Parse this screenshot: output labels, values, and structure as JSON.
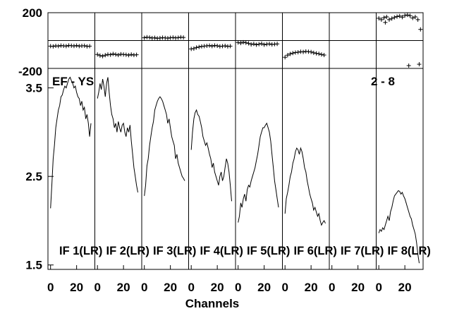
{
  "chart_data": {
    "type": "line",
    "xlabel": "Channels",
    "x_tick_labels": [
      "0",
      "20"
    ],
    "baseline_label": "EF - YS",
    "page_label": "2 - 8",
    "phase_panel": {
      "ylim": [
        -200,
        200
      ],
      "y_tick_labels": [
        "200",
        "-200"
      ]
    },
    "amp_panel": {
      "ylim": [
        1.45,
        3.72
      ],
      "y_tick_labels": [
        "3.5",
        "2.5",
        "1.5"
      ],
      "y_ticks": [
        3.5,
        2.5,
        1.5
      ]
    },
    "xlim": [
      -2,
      34
    ],
    "panels": [
      {
        "label": "IF 1(LR)",
        "amp_x": [
          0,
          1,
          2,
          3,
          4,
          5,
          6,
          7,
          8,
          9,
          10,
          11,
          12,
          13,
          14,
          15,
          16,
          17,
          18,
          19,
          20,
          21,
          22,
          23,
          24,
          25,
          26,
          27,
          28,
          29,
          30,
          31
        ],
        "amp_y": [
          2.14,
          2.4,
          2.7,
          2.85,
          3.05,
          3.15,
          3.25,
          3.3,
          3.4,
          3.42,
          3.48,
          3.52,
          3.5,
          3.55,
          3.6,
          3.62,
          3.58,
          3.55,
          3.5,
          3.52,
          3.45,
          3.4,
          3.38,
          3.3,
          3.35,
          3.25,
          3.28,
          3.15,
          3.2,
          3.1,
          2.95,
          3.1
        ],
        "phase_x": [
          0,
          2,
          4,
          6,
          8,
          10,
          12,
          14,
          16,
          18,
          20,
          22,
          24,
          26,
          28,
          30
        ],
        "phase_y": [
          -40,
          -42,
          -38,
          -40,
          -36,
          -38,
          -40,
          -35,
          -37,
          -39,
          -36,
          -40,
          -38,
          -37,
          -42,
          -40
        ]
      },
      {
        "label": "IF 2(LR)",
        "amp_x": [
          0,
          1,
          2,
          3,
          4,
          5,
          6,
          7,
          8,
          9,
          10,
          11,
          12,
          13,
          14,
          15,
          16,
          17,
          18,
          19,
          20,
          21,
          22,
          23,
          24,
          25,
          26,
          27,
          28,
          29,
          30,
          31
        ],
        "amp_y": [
          3.38,
          3.45,
          3.55,
          3.48,
          3.6,
          3.52,
          3.4,
          3.55,
          3.62,
          3.45,
          3.3,
          3.2,
          3.15,
          3.05,
          3.1,
          3.0,
          3.12,
          3.05,
          3.0,
          3.08,
          3.1,
          3.0,
          2.95,
          3.05,
          3.0,
          3.08,
          2.9,
          2.75,
          2.6,
          2.5,
          2.4,
          2.32
        ],
        "phase_x": [
          0,
          2,
          4,
          6,
          8,
          10,
          12,
          14,
          16,
          18,
          20,
          22,
          24,
          26,
          28,
          30
        ],
        "phase_y": [
          -100,
          -108,
          -112,
          -105,
          -100,
          -102,
          -96,
          -100,
          -104,
          -98,
          -100,
          -102,
          -105,
          -100,
          -104,
          -102
        ]
      },
      {
        "label": "IF 3(LR)",
        "amp_x": [
          0,
          1,
          2,
          3,
          4,
          5,
          6,
          7,
          8,
          9,
          10,
          11,
          12,
          13,
          14,
          15,
          16,
          17,
          18,
          19,
          20,
          21,
          22,
          23,
          24,
          25,
          26,
          27,
          28,
          29,
          30,
          31
        ],
        "amp_y": [
          2.28,
          2.4,
          2.62,
          2.7,
          2.85,
          2.95,
          3.05,
          3.12,
          3.25,
          3.3,
          3.35,
          3.38,
          3.4,
          3.38,
          3.35,
          3.3,
          3.25,
          3.2,
          3.1,
          3.15,
          3.05,
          2.95,
          2.9,
          2.85,
          2.7,
          2.75,
          2.65,
          2.6,
          2.55,
          2.5,
          2.48,
          2.45
        ],
        "phase_x": [
          0,
          2,
          4,
          6,
          8,
          10,
          12,
          14,
          16,
          18,
          20,
          22,
          24,
          26,
          28,
          30
        ],
        "phase_y": [
          20,
          24,
          22,
          18,
          20,
          16,
          18,
          21,
          19,
          17,
          20,
          22,
          19,
          21,
          24,
          22
        ]
      },
      {
        "label": "IF 4(LR)",
        "amp_x": [
          0,
          1,
          2,
          3,
          4,
          5,
          6,
          7,
          8,
          9,
          10,
          11,
          12,
          13,
          14,
          15,
          16,
          17,
          18,
          19,
          20,
          21,
          22,
          23,
          24,
          25,
          26,
          27,
          28,
          29,
          30,
          31
        ],
        "amp_y": [
          2.8,
          3.0,
          3.15,
          3.22,
          3.25,
          3.2,
          3.18,
          3.12,
          3.05,
          2.95,
          2.9,
          2.85,
          2.88,
          2.82,
          2.75,
          2.7,
          2.6,
          2.65,
          2.55,
          2.5,
          2.45,
          2.4,
          2.5,
          2.55,
          2.45,
          2.5,
          2.6,
          2.7,
          2.65,
          2.55,
          2.4,
          2.22
        ],
        "phase_x": [
          0,
          2,
          4,
          6,
          8,
          10,
          12,
          14,
          16,
          18,
          20,
          22,
          24,
          26,
          28,
          30
        ],
        "phase_y": [
          -60,
          -58,
          -50,
          -46,
          -42,
          -40,
          -38,
          -36,
          -40,
          -35,
          -38,
          -42,
          -40,
          -38,
          -42,
          -40
        ]
      },
      {
        "label": "IF 5(LR)",
        "amp_x": [
          0,
          1,
          2,
          3,
          4,
          5,
          6,
          7,
          8,
          9,
          10,
          11,
          12,
          13,
          14,
          15,
          16,
          17,
          18,
          19,
          20,
          21,
          22,
          23,
          24,
          25,
          26,
          27,
          28,
          29,
          30,
          31
        ],
        "amp_y": [
          1.98,
          2.05,
          2.2,
          2.15,
          2.25,
          2.3,
          2.22,
          2.35,
          2.4,
          2.38,
          2.45,
          2.5,
          2.55,
          2.6,
          2.68,
          2.75,
          2.85,
          2.95,
          3.0,
          3.05,
          3.05,
          3.08,
          3.1,
          3.05,
          3.0,
          2.9,
          2.75,
          2.6,
          2.45,
          2.35,
          2.25,
          2.15
        ],
        "phase_x": [
          0,
          2,
          4,
          6,
          8,
          10,
          12,
          14,
          16,
          18,
          20,
          22,
          24,
          26,
          28,
          30
        ],
        "phase_y": [
          -14,
          -18,
          -12,
          -16,
          -20,
          -28,
          -24,
          -30,
          -26,
          -22,
          -30,
          -26,
          -24,
          -28,
          -26,
          -24
        ]
      },
      {
        "label": "IF 6(LR)",
        "amp_x": [
          0,
          1,
          2,
          3,
          4,
          5,
          6,
          7,
          8,
          9,
          10,
          11,
          12,
          13,
          14,
          15,
          16,
          17,
          18,
          19,
          20,
          21,
          22,
          23,
          24,
          25,
          26,
          27,
          28,
          29,
          30,
          31
        ],
        "amp_y": [
          2.08,
          2.25,
          2.32,
          2.4,
          2.5,
          2.55,
          2.65,
          2.7,
          2.78,
          2.82,
          2.8,
          2.75,
          2.82,
          2.78,
          2.7,
          2.6,
          2.55,
          2.45,
          2.38,
          2.3,
          2.25,
          2.2,
          2.12,
          2.15,
          2.1,
          2.05,
          2.08,
          2.0,
          1.95,
          1.98,
          2.0,
          1.97
        ],
        "phase_x": [
          0,
          2,
          4,
          6,
          8,
          10,
          12,
          14,
          16,
          18,
          20,
          22,
          24,
          26,
          28,
          30
        ],
        "phase_y": [
          -120,
          -105,
          -96,
          -90,
          -86,
          -84,
          -80,
          -82,
          -78,
          -80,
          -82,
          -88,
          -92,
          -95,
          -100,
          -104
        ]
      },
      {
        "label": "IF 7(LR)",
        "amp_x": [],
        "amp_y": [],
        "phase_x": [],
        "phase_y": []
      },
      {
        "label": "IF 8(LR)",
        "amp_x": [
          0,
          1,
          2,
          3,
          4,
          5,
          6,
          7,
          8,
          9,
          10,
          11,
          12,
          13,
          14,
          15,
          16,
          17,
          18,
          19,
          20,
          21,
          22,
          23,
          24,
          25,
          26,
          27,
          28,
          29,
          30,
          31
        ],
        "amp_y": [
          1.86,
          1.9,
          1.88,
          1.92,
          1.9,
          1.95,
          2.0,
          2.05,
          2.0,
          2.1,
          2.15,
          2.22,
          2.28,
          2.3,
          2.32,
          2.34,
          2.33,
          2.3,
          2.32,
          2.28,
          2.25,
          2.2,
          2.15,
          2.1,
          2.05,
          2.02,
          1.95,
          1.9,
          1.85,
          1.75,
          1.62,
          1.52
        ],
        "phase_x": [
          0,
          2,
          4,
          5,
          6,
          8,
          10,
          12,
          14,
          16,
          18,
          20,
          22,
          23,
          24,
          26,
          28,
          30,
          31,
          32
        ],
        "phase_y": [
          160,
          150,
          164,
          130,
          170,
          150,
          158,
          166,
          172,
          176,
          168,
          180,
          184,
          -180,
          178,
          162,
          170,
          150,
          -170,
          80
        ]
      }
    ]
  }
}
